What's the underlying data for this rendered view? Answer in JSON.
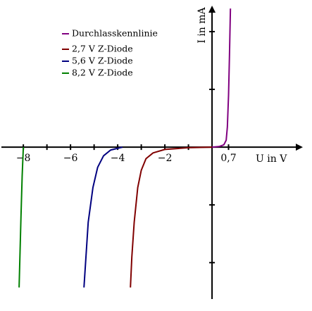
{
  "chart_data": {
    "type": "line",
    "x_label": "U in V",
    "y_label": "I in mA",
    "xlim": [
      -8.93,
      3.85
    ],
    "ylim": [
      -2.63,
      2.45
    ],
    "xticks": [
      {
        "value": -8,
        "label": "−8"
      },
      {
        "value": -6,
        "label": "−6"
      },
      {
        "value": -4,
        "label": "−4"
      },
      {
        "value": -2,
        "label": "−2"
      },
      {
        "value": 0.7,
        "label": "0,7"
      }
    ],
    "xminor_ticks": [
      -7,
      -5,
      -3,
      -1
    ],
    "yminor_ticks": [
      -2,
      -1,
      1,
      2
    ],
    "legend": "upper left",
    "series": [
      {
        "name": "Durchlasskennlinie",
        "color": "#800080",
        "x": [
          0,
          0.3,
          0.5,
          0.6,
          0.65,
          0.7,
          0.74,
          0.78
        ],
        "values": [
          0,
          0.01,
          0.04,
          0.12,
          0.35,
          0.9,
          1.6,
          2.4
        ]
      },
      {
        "name": "2,7 V Z-Diode",
        "color": "#800000",
        "x": [
          0,
          -1,
          -2,
          -2.5,
          -2.8,
          -3.0,
          -3.15,
          -3.3,
          -3.4,
          -3.46
        ],
        "values": [
          0,
          -0.01,
          -0.04,
          -0.1,
          -0.2,
          -0.4,
          -0.7,
          -1.3,
          -1.9,
          -2.43
        ]
      },
      {
        "name": "5,6 V Z-Diode",
        "color": "#000080",
        "x": [
          -3.8,
          -4.0,
          -4.3,
          -4.6,
          -4.85,
          -5.05,
          -5.25,
          -5.43
        ],
        "values": [
          0,
          -0.02,
          -0.05,
          -0.15,
          -0.35,
          -0.7,
          -1.3,
          -2.43
        ]
      },
      {
        "name": "8,2 V Z-Diode",
        "color": "#008000",
        "x": [
          -8.0,
          -8.05,
          -8.1,
          -8.18
        ],
        "values": [
          0,
          -0.5,
          -1.2,
          -2.43
        ]
      }
    ]
  }
}
